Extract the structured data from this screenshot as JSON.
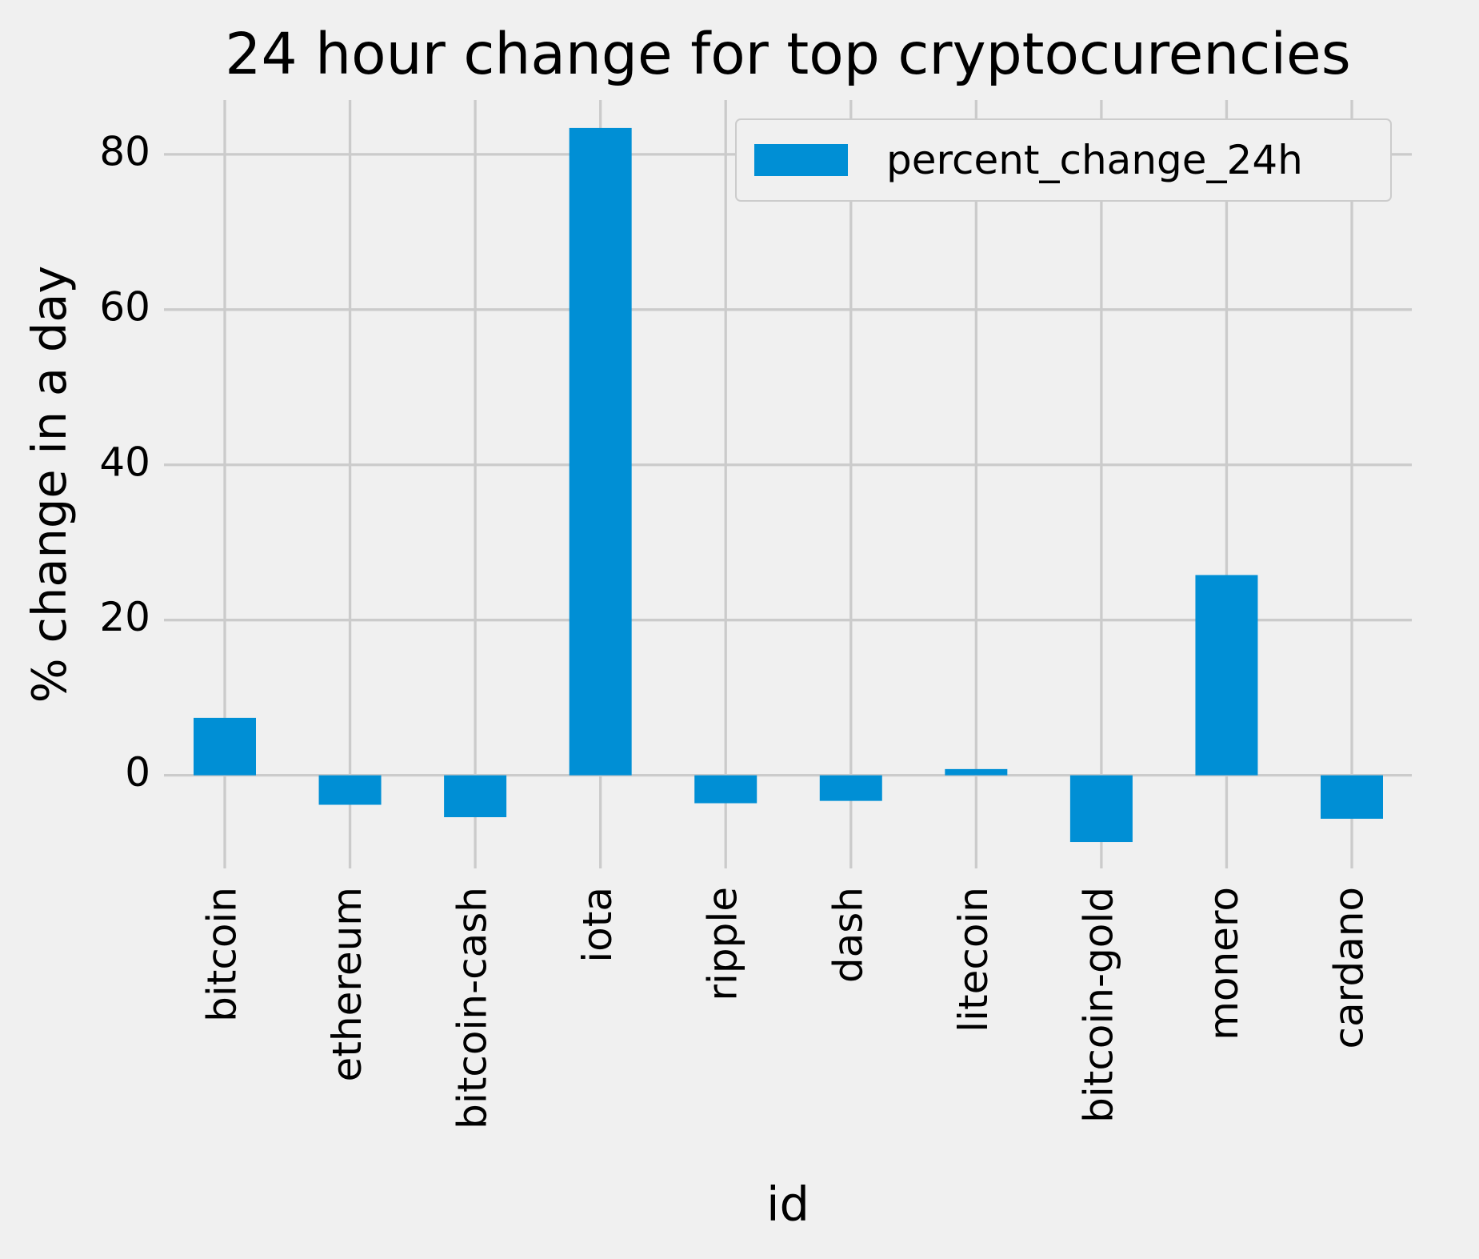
{
  "chart_data": {
    "type": "bar",
    "title": "24 hour change for top cryptocurencies",
    "xlabel": "id",
    "ylabel": "% change in a day",
    "categories": [
      "bitcoin",
      "ethereum",
      "bitcoin-cash",
      "iota",
      "ripple",
      "dash",
      "litecoin",
      "bitcoin-gold",
      "monero",
      "cardano"
    ],
    "series": [
      {
        "name": "percent_change_24h",
        "values": [
          7.4,
          -3.8,
          -5.4,
          83.4,
          -3.6,
          -3.3,
          0.8,
          -8.6,
          25.8,
          -5.6
        ],
        "color": "#008fd5"
      }
    ],
    "ylim": [
      -12,
      87
    ],
    "yticks": [
      0,
      20,
      40,
      60,
      80
    ],
    "grid": true,
    "legend": "top-right",
    "colors": {
      "background": "#f0f0f0",
      "grid": "#cbcbcb",
      "bar": "#008fd5"
    }
  }
}
